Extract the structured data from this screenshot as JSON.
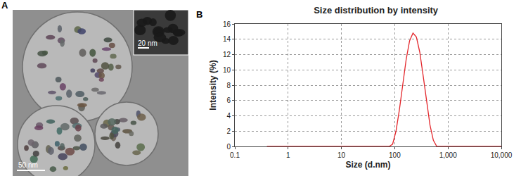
{
  "panel_a": {
    "label": "A",
    "scale_bar": "50 nm",
    "inset_scale_bar": "20 nm"
  },
  "chart_data": {
    "type": "line",
    "panel_label": "B",
    "title": "Size distribution by intensity",
    "x_label": "Size (d.nm)",
    "y_label": "Intensity (%)",
    "log": "x",
    "grid": true,
    "color": "#e3262b",
    "x": [
      0.4,
      68.06,
      78.82,
      91.28,
      105.7,
      122.4,
      141.8,
      164.2,
      190.1,
      220.2,
      255.0,
      295.3,
      342.0,
      396.1,
      458.7,
      531.2,
      615.1,
      712.4,
      10000
    ],
    "values": [
      0,
      0,
      0,
      0.3,
      2.0,
      4.8,
      8.2,
      11.4,
      13.8,
      14.8,
      14.3,
      12.3,
      9.2,
      5.8,
      2.8,
      0.8,
      0,
      0,
      0
    ],
    "xlim": [
      0.1,
      10000
    ],
    "xticks": [
      0.1,
      1,
      10,
      100,
      {
        "value": 1000,
        "label": "1,000"
      },
      {
        "value": 10000,
        "label": "10,000"
      }
    ],
    "ylim": [
      0,
      16
    ],
    "yticks": [
      0,
      2,
      4,
      6,
      8,
      10,
      12,
      14,
      16
    ]
  }
}
